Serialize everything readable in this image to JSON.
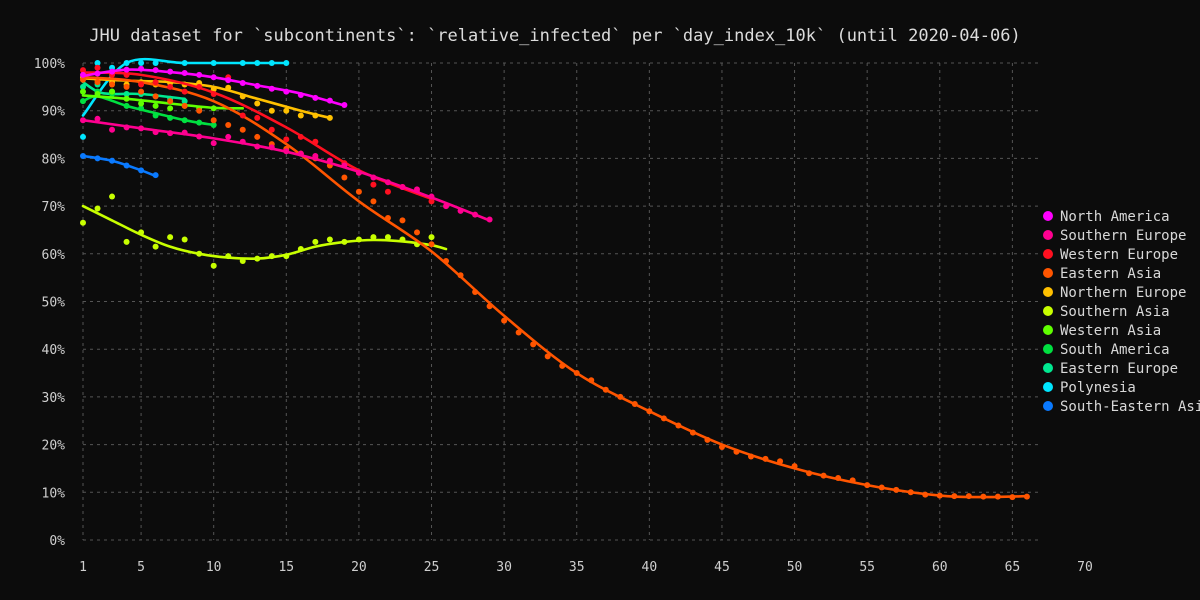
{
  "chart_data": {
    "type": "line",
    "title": "JHU dataset for `subcontinents`: `relative_infected` per `day_index_10k` (until 2020-04-06)",
    "xlabel": "",
    "ylabel": "",
    "xlim": [
      1,
      70
    ],
    "ylim": [
      0,
      100
    ],
    "x_ticks": [
      1,
      5,
      10,
      15,
      20,
      25,
      30,
      35,
      40,
      45,
      50,
      55,
      60,
      65,
      70
    ],
    "y_ticks": [
      0,
      10,
      20,
      30,
      40,
      50,
      60,
      70,
      80,
      90,
      100
    ],
    "y_tick_labels": [
      "0%",
      "10%",
      "20%",
      "30%",
      "40%",
      "50%",
      "60%",
      "70%",
      "80%",
      "90%",
      "100%"
    ],
    "grid": true,
    "legend_position": "right",
    "series": [
      {
        "name": "North America",
        "color": "#ff00ff",
        "points": [
          [
            1,
            97.5
          ],
          [
            2,
            97.8
          ],
          [
            3,
            98.2
          ],
          [
            4,
            98.6
          ],
          [
            5,
            98.8
          ],
          [
            6,
            98.5
          ],
          [
            7,
            98.2
          ],
          [
            8,
            97.9
          ],
          [
            9,
            97.5
          ],
          [
            10,
            97
          ],
          [
            11,
            96.4
          ],
          [
            12,
            95.8
          ],
          [
            13,
            95.2
          ],
          [
            14,
            94.6
          ],
          [
            15,
            94
          ],
          [
            16,
            93.3
          ],
          [
            17,
            92.7
          ],
          [
            18,
            92.1
          ],
          [
            19,
            91.2
          ]
        ],
        "trend": [
          [
            1,
            97.3
          ],
          [
            4,
            98.6
          ],
          [
            7,
            98.1
          ],
          [
            10,
            97
          ],
          [
            13,
            95.3
          ],
          [
            16,
            93.6
          ],
          [
            19,
            91.1
          ]
        ]
      },
      {
        "name": "Southern Europe",
        "color": "#ff0090",
        "points": [
          [
            1,
            88
          ],
          [
            2,
            88.3
          ],
          [
            3,
            86
          ],
          [
            4,
            86.5
          ],
          [
            5,
            86.3
          ],
          [
            6,
            85.5
          ],
          [
            7,
            85.3
          ],
          [
            8,
            85.4
          ],
          [
            9,
            84.6
          ],
          [
            10,
            83.2
          ],
          [
            11,
            84.5
          ],
          [
            12,
            83.5
          ],
          [
            13,
            82.5
          ],
          [
            14,
            82.3
          ],
          [
            15,
            81.5
          ],
          [
            16,
            81
          ],
          [
            17,
            80.5
          ],
          [
            18,
            79.5
          ],
          [
            19,
            78.5
          ],
          [
            20,
            77
          ],
          [
            21,
            76
          ],
          [
            22,
            75
          ],
          [
            23,
            74
          ],
          [
            24,
            73.5
          ],
          [
            25,
            72
          ],
          [
            26,
            70
          ],
          [
            27,
            69
          ],
          [
            28,
            68.2
          ],
          [
            29,
            67.2
          ]
        ],
        "trend": [
          [
            1,
            88
          ],
          [
            5,
            86.3
          ],
          [
            10,
            84.2
          ],
          [
            15,
            81.4
          ],
          [
            20,
            77.2
          ],
          [
            25,
            71.8
          ],
          [
            29,
            67
          ]
        ]
      },
      {
        "name": "Western Europe",
        "color": "#ff1020",
        "points": [
          [
            1,
            98.5
          ],
          [
            2,
            99
          ],
          [
            3,
            97.5
          ],
          [
            4,
            97.5
          ],
          [
            5,
            95.5
          ],
          [
            6,
            96
          ],
          [
            7,
            95
          ],
          [
            8,
            94
          ],
          [
            9,
            95
          ],
          [
            10,
            93.5
          ],
          [
            11,
            97
          ],
          [
            12,
            89
          ],
          [
            13,
            88.5
          ],
          [
            14,
            86
          ],
          [
            15,
            84
          ],
          [
            16,
            84.5
          ],
          [
            17,
            83.5
          ],
          [
            18,
            79.5
          ],
          [
            19,
            79
          ],
          [
            20,
            77
          ],
          [
            21,
            74.5
          ],
          [
            22,
            73
          ],
          [
            23,
            74
          ],
          [
            24,
            73
          ],
          [
            25,
            71
          ]
        ],
        "trend": [
          [
            1,
            98
          ],
          [
            5,
            97.5
          ],
          [
            10,
            93.8
          ],
          [
            15,
            86.5
          ],
          [
            20,
            77.5
          ],
          [
            25,
            71.5
          ]
        ]
      },
      {
        "name": "Eastern Asia",
        "color": "#ff5500",
        "points": [
          [
            1,
            96.5
          ],
          [
            2,
            96
          ],
          [
            3,
            95.5
          ],
          [
            4,
            95
          ],
          [
            5,
            94
          ],
          [
            6,
            93
          ],
          [
            7,
            92
          ],
          [
            8,
            91
          ],
          [
            9,
            90
          ],
          [
            10,
            88
          ],
          [
            11,
            87
          ],
          [
            12,
            86
          ],
          [
            13,
            84.5
          ],
          [
            14,
            83
          ],
          [
            15,
            82
          ],
          [
            16,
            81
          ],
          [
            17,
            80
          ],
          [
            18,
            78.5
          ],
          [
            19,
            76
          ],
          [
            20,
            73
          ],
          [
            21,
            71
          ],
          [
            22,
            67.5
          ],
          [
            23,
            67
          ],
          [
            24,
            64.5
          ],
          [
            25,
            62
          ],
          [
            26,
            58.5
          ],
          [
            27,
            55.5
          ],
          [
            28,
            52
          ],
          [
            29,
            49
          ],
          [
            30,
            46
          ],
          [
            31,
            43.5
          ],
          [
            32,
            41
          ],
          [
            33,
            38.5
          ],
          [
            34,
            36.5
          ],
          [
            35,
            35
          ],
          [
            36,
            33.5
          ],
          [
            37,
            31.5
          ],
          [
            38,
            30
          ],
          [
            39,
            28.5
          ],
          [
            40,
            27
          ],
          [
            41,
            25.5
          ],
          [
            42,
            24
          ],
          [
            43,
            22.5
          ],
          [
            44,
            21
          ],
          [
            45,
            19.5
          ],
          [
            46,
            18.5
          ],
          [
            47,
            17.5
          ],
          [
            48,
            17
          ],
          [
            49,
            16.5
          ],
          [
            50,
            15.5
          ],
          [
            51,
            14
          ],
          [
            52,
            13.5
          ],
          [
            53,
            13
          ],
          [
            54,
            12.5
          ],
          [
            55,
            11.5
          ],
          [
            56,
            11
          ],
          [
            57,
            10.5
          ],
          [
            58,
            10
          ],
          [
            59,
            9.5
          ],
          [
            60,
            9.3
          ],
          [
            61,
            9.2
          ],
          [
            62,
            9.2
          ],
          [
            63,
            9.1
          ],
          [
            64,
            9.1
          ],
          [
            65,
            9
          ],
          [
            66,
            9.1
          ]
        ],
        "trend": [
          [
            1,
            97
          ],
          [
            5,
            96
          ],
          [
            10,
            92
          ],
          [
            15,
            83
          ],
          [
            20,
            71
          ],
          [
            25,
            60.5
          ],
          [
            30,
            47
          ],
          [
            35,
            35
          ],
          [
            40,
            27
          ],
          [
            45,
            20
          ],
          [
            50,
            15
          ],
          [
            55,
            11.5
          ],
          [
            60,
            9.3
          ],
          [
            63,
            9
          ],
          [
            66,
            9.2
          ]
        ]
      },
      {
        "name": "Northern Europe",
        "color": "#ffc000",
        "points": [
          [
            1,
            97
          ],
          [
            2,
            96.5
          ],
          [
            3,
            96
          ],
          [
            4,
            95.5
          ],
          [
            5,
            96
          ],
          [
            6,
            95.5
          ],
          [
            7,
            95.8
          ],
          [
            8,
            95.5
          ],
          [
            9,
            95.8
          ],
          [
            10,
            94.5
          ],
          [
            11,
            94.8
          ],
          [
            12,
            93
          ],
          [
            13,
            91.5
          ],
          [
            14,
            90
          ],
          [
            15,
            90
          ],
          [
            16,
            89
          ],
          [
            17,
            89
          ],
          [
            18,
            88.5
          ]
        ],
        "trend": [
          [
            1,
            96.8
          ],
          [
            4,
            96.3
          ],
          [
            7,
            96
          ],
          [
            10,
            95
          ],
          [
            13,
            92.5
          ],
          [
            16,
            90
          ],
          [
            18,
            88.5
          ]
        ]
      },
      {
        "name": "Southern Asia",
        "color": "#c8ff00",
        "points": [
          [
            1,
            66.5
          ],
          [
            2,
            69.5
          ],
          [
            3,
            72
          ],
          [
            4,
            62.5
          ],
          [
            5,
            64.5
          ],
          [
            6,
            61.5
          ],
          [
            7,
            63.5
          ],
          [
            8,
            63
          ],
          [
            9,
            60
          ],
          [
            10,
            57.5
          ],
          [
            11,
            59.5
          ],
          [
            12,
            58.5
          ],
          [
            13,
            59
          ],
          [
            14,
            59.5
          ],
          [
            15,
            59.5
          ],
          [
            16,
            61
          ],
          [
            17,
            62.5
          ],
          [
            18,
            63
          ],
          [
            19,
            62.5
          ],
          [
            20,
            63
          ],
          [
            21,
            63.5
          ],
          [
            22,
            63.5
          ],
          [
            23,
            63
          ],
          [
            24,
            62
          ],
          [
            25,
            63.5
          ]
        ],
        "trend": [
          [
            1,
            70
          ],
          [
            3,
            67
          ],
          [
            5,
            64
          ],
          [
            7,
            61.5
          ],
          [
            9,
            60
          ],
          [
            11,
            59.2
          ],
          [
            13,
            59
          ],
          [
            15,
            59.8
          ],
          [
            17,
            61.5
          ],
          [
            19,
            62.5
          ],
          [
            21,
            62.9
          ],
          [
            23,
            62.6
          ],
          [
            25,
            61.8
          ],
          [
            26,
            61
          ]
        ]
      },
      {
        "name": "Western Asia",
        "color": "#60ff00",
        "points": [
          [
            1,
            94
          ],
          [
            2,
            93.5
          ],
          [
            3,
            94
          ],
          [
            4,
            92.5
          ],
          [
            5,
            91.5
          ],
          [
            6,
            91
          ],
          [
            7,
            90.5
          ],
          [
            8,
            91
          ],
          [
            9,
            90.5
          ],
          [
            10,
            90.5
          ]
        ],
        "trend": [
          [
            1,
            93.2
          ],
          [
            4,
            92.5
          ],
          [
            7,
            91.5
          ],
          [
            10,
            90.6
          ],
          [
            12,
            90.5
          ]
        ]
      },
      {
        "name": "South America",
        "color": "#00e040",
        "points": [
          [
            1,
            92
          ],
          [
            2,
            94
          ],
          [
            3,
            93.5
          ],
          [
            4,
            91
          ],
          [
            5,
            90.5
          ],
          [
            6,
            89
          ],
          [
            7,
            88.5
          ],
          [
            8,
            88
          ],
          [
            9,
            87.5
          ],
          [
            10,
            87
          ]
        ],
        "trend": [
          [
            1,
            92
          ],
          [
            2,
            93
          ],
          [
            4,
            91
          ],
          [
            6,
            89.5
          ],
          [
            8,
            88
          ],
          [
            10,
            87
          ]
        ]
      },
      {
        "name": "Eastern Europe",
        "color": "#00e890",
        "points": [
          [
            1,
            95
          ],
          [
            2,
            95.5
          ],
          [
            3,
            94
          ],
          [
            4,
            93.5
          ],
          [
            5,
            93.5
          ],
          [
            6,
            93
          ],
          [
            7,
            92.5
          ],
          [
            8,
            92
          ]
        ],
        "trend": [
          [
            1,
            96
          ],
          [
            2,
            94
          ],
          [
            3,
            93.5
          ],
          [
            5,
            93.5
          ],
          [
            8,
            92.5
          ]
        ]
      },
      {
        "name": "Polynesia",
        "color": "#00e6ff",
        "points": [
          [
            1,
            84.5
          ],
          [
            2,
            100
          ],
          [
            3,
            99
          ],
          [
            4,
            100
          ],
          [
            5,
            100
          ],
          [
            6,
            100
          ],
          [
            8,
            100
          ],
          [
            10,
            100
          ],
          [
            12,
            100
          ],
          [
            13,
            100
          ],
          [
            14,
            100
          ],
          [
            15,
            100
          ]
        ],
        "trend": [
          [
            1,
            89
          ],
          [
            4,
            100
          ],
          [
            8,
            100
          ],
          [
            12,
            100
          ],
          [
            15,
            100
          ]
        ]
      },
      {
        "name": "South-Eastern Asia",
        "color": "#0a7aff",
        "points": [
          [
            1,
            80.5
          ],
          [
            2,
            80
          ],
          [
            3,
            79.5
          ],
          [
            4,
            78.5
          ],
          [
            5,
            77.5
          ],
          [
            6,
            76.5
          ]
        ],
        "trend": [
          [
            1,
            80.5
          ],
          [
            3,
            79.5
          ],
          [
            5,
            77.5
          ],
          [
            6,
            76.3
          ]
        ]
      }
    ]
  }
}
